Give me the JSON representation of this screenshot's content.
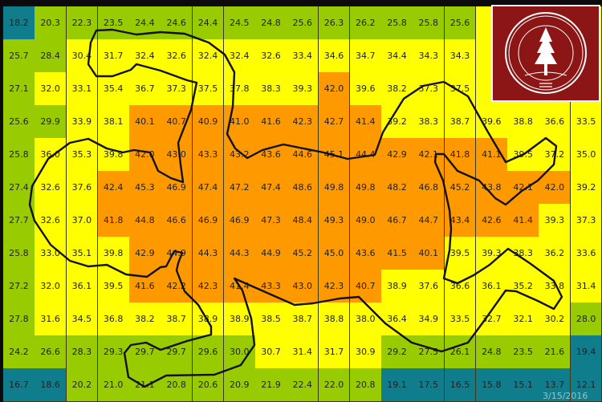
{
  "chart_data": {
    "type": "heatmap",
    "title": "",
    "xlabel": "",
    "ylabel": "",
    "grid": true,
    "color_scale": [
      {
        "range": "below 20",
        "color": "#0f7d8c"
      },
      {
        "range": "20 to 30",
        "color": "#99cc00"
      },
      {
        "range": "30 to 40",
        "color": "#ffff00"
      },
      {
        "range": "40 and above",
        "color": "#ff9900"
      }
    ],
    "values": [
      [
        18.2,
        20.3,
        22.3,
        23.5,
        24.4,
        24.6,
        24.4,
        24.5,
        24.8,
        25.6,
        26.3,
        26.2,
        25.8,
        25.8,
        25.6,
        null,
        null,
        null,
        null
      ],
      [
        25.7,
        28.4,
        30.4,
        31.7,
        32.4,
        32.6,
        32.4,
        32.4,
        32.6,
        33.4,
        34.6,
        34.7,
        34.4,
        34.3,
        34.3,
        null,
        null,
        null,
        null
      ],
      [
        27.1,
        32.0,
        33.1,
        35.4,
        36.7,
        37.3,
        37.5,
        37.8,
        38.3,
        39.3,
        42.0,
        39.6,
        38.2,
        37.3,
        37.5,
        null,
        null,
        null,
        null
      ],
      [
        25.6,
        29.9,
        33.9,
        38.1,
        40.1,
        40.7,
        40.9,
        41.0,
        41.6,
        42.3,
        42.7,
        41.4,
        39.2,
        38.3,
        38.7,
        39.6,
        38.8,
        36.6,
        33.5
      ],
      [
        25.8,
        36.0,
        35.3,
        39.8,
        42.0,
        43.0,
        43.3,
        43.2,
        43.6,
        44.6,
        45.1,
        44.4,
        42.9,
        42.1,
        41.8,
        41.1,
        39.5,
        37.2,
        35.0
      ],
      [
        27.4,
        32.6,
        37.6,
        42.4,
        45.3,
        46.9,
        47.4,
        47.2,
        47.4,
        48.6,
        49.8,
        49.8,
        48.2,
        46.8,
        45.2,
        43.8,
        42.1,
        42.0,
        39.2
      ],
      [
        27.7,
        32.6,
        37.0,
        41.8,
        44.8,
        46.6,
        46.9,
        46.9,
        47.3,
        48.4,
        49.3,
        49.0,
        46.7,
        44.7,
        43.4,
        42.6,
        41.4,
        39.3,
        37.3
      ],
      [
        25.8,
        33.0,
        35.1,
        39.8,
        42.9,
        44.9,
        44.3,
        44.3,
        44.9,
        45.2,
        45.0,
        43.6,
        41.5,
        40.1,
        39.5,
        39.3,
        38.3,
        36.2,
        33.6
      ],
      [
        27.2,
        32.0,
        36.1,
        39.5,
        41.6,
        42.2,
        42.3,
        41.4,
        43.3,
        43.0,
        42.3,
        40.7,
        38.9,
        37.6,
        36.6,
        36.1,
        35.2,
        33.8,
        31.4
      ],
      [
        27.8,
        31.6,
        34.5,
        36.8,
        38.2,
        38.7,
        38.9,
        38.9,
        38.5,
        38.7,
        38.8,
        38.0,
        36.4,
        34.9,
        33.5,
        32.7,
        32.1,
        30.2,
        28.0
      ],
      [
        24.2,
        26.6,
        28.3,
        29.3,
        29.7,
        29.7,
        29.6,
        30.0,
        30.7,
        31.4,
        31.7,
        30.9,
        29.2,
        27.5,
        26.1,
        24.8,
        23.5,
        21.6,
        19.4
      ],
      [
        16.7,
        18.6,
        20.2,
        21.0,
        21.1,
        20.8,
        20.6,
        20.9,
        21.9,
        22.4,
        22.0,
        20.8,
        19.1,
        17.5,
        16.5,
        15.8,
        15.1,
        13.7,
        12.1
      ]
    ]
  },
  "logo": {
    "text": "LELAND STANFORD JUNIOR UNIVERSITY",
    "year": "1891",
    "color": "#8c1515"
  },
  "timestamp": "3/15/2016"
}
